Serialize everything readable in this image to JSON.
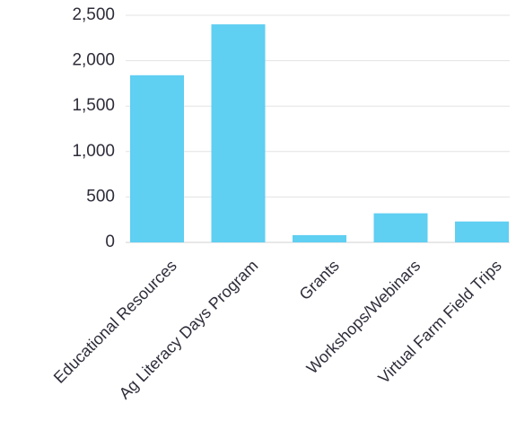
{
  "chart_data": {
    "type": "bar",
    "categories": [
      "Educational Resources",
      "Ag Literacy Days Program",
      "Grants",
      "Workshops/Webinars",
      "Virtual Farm Field Trips"
    ],
    "values": [
      1840,
      2400,
      80,
      320,
      230
    ],
    "ylim": [
      0,
      2500
    ],
    "yticks": [
      0,
      500,
      1000,
      1500,
      2000,
      2500
    ],
    "ytick_labels": [
      "0",
      "500",
      "1,000",
      "1,500",
      "2,000",
      "2,500"
    ],
    "title": "",
    "xlabel": "",
    "ylabel": "",
    "grid": true,
    "bar_color": "#5fcff2"
  }
}
